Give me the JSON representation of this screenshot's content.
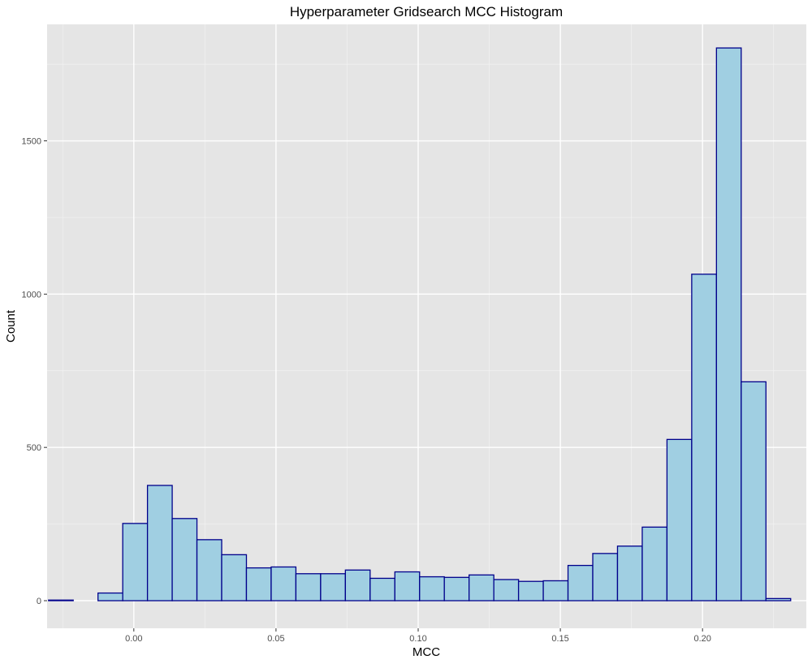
{
  "chart_data": {
    "type": "bar",
    "subtype": "histogram",
    "title": "Hyperparameter Gridsearch MCC Histogram",
    "xlabel": "MCC",
    "ylabel": "Count",
    "xlim": [
      -0.0305,
      0.2365
    ],
    "ylim": [
      -90,
      1880
    ],
    "x_ticks": [
      {
        "value": 0.0,
        "label": "0.00"
      },
      {
        "value": 0.05,
        "label": "0.05"
      },
      {
        "value": 0.1,
        "label": "0.10"
      },
      {
        "value": 0.15,
        "label": "0.15"
      },
      {
        "value": 0.2,
        "label": "0.20"
      }
    ],
    "y_ticks": [
      {
        "value": 0,
        "label": "0"
      },
      {
        "value": 500,
        "label": "500"
      },
      {
        "value": 1000,
        "label": "1000"
      },
      {
        "value": 1500,
        "label": "1500"
      }
    ],
    "x_minor_grid": [
      -0.025,
      0.025,
      0.075,
      0.125,
      0.175,
      0.225
    ],
    "y_minor_grid": [
      250,
      750,
      1250,
      1750
    ],
    "grid": true,
    "bin_width": 0.0087,
    "bins": [
      {
        "start": -0.03,
        "end": -0.0213,
        "count": 2
      },
      {
        "start": -0.0213,
        "end": -0.0126,
        "count": 0
      },
      {
        "start": -0.0126,
        "end": -0.0039,
        "count": 25
      },
      {
        "start": -0.0039,
        "end": 0.0048,
        "count": 252
      },
      {
        "start": 0.0048,
        "end": 0.0135,
        "count": 376
      },
      {
        "start": 0.0135,
        "end": 0.0222,
        "count": 268
      },
      {
        "start": 0.0222,
        "end": 0.0309,
        "count": 199
      },
      {
        "start": 0.0309,
        "end": 0.0396,
        "count": 150
      },
      {
        "start": 0.0396,
        "end": 0.0483,
        "count": 107
      },
      {
        "start": 0.0483,
        "end": 0.057,
        "count": 110
      },
      {
        "start": 0.057,
        "end": 0.0657,
        "count": 88
      },
      {
        "start": 0.0657,
        "end": 0.0744,
        "count": 88
      },
      {
        "start": 0.0744,
        "end": 0.0831,
        "count": 100
      },
      {
        "start": 0.0831,
        "end": 0.0918,
        "count": 73
      },
      {
        "start": 0.0918,
        "end": 0.1005,
        "count": 94
      },
      {
        "start": 0.1005,
        "end": 0.1092,
        "count": 78
      },
      {
        "start": 0.1092,
        "end": 0.1179,
        "count": 76
      },
      {
        "start": 0.1179,
        "end": 0.1266,
        "count": 84
      },
      {
        "start": 0.1266,
        "end": 0.1353,
        "count": 69
      },
      {
        "start": 0.1353,
        "end": 0.144,
        "count": 63
      },
      {
        "start": 0.144,
        "end": 0.1527,
        "count": 65
      },
      {
        "start": 0.1527,
        "end": 0.1614,
        "count": 115
      },
      {
        "start": 0.1614,
        "end": 0.1701,
        "count": 154
      },
      {
        "start": 0.1701,
        "end": 0.1788,
        "count": 178
      },
      {
        "start": 0.1788,
        "end": 0.1875,
        "count": 240
      },
      {
        "start": 0.1875,
        "end": 0.1962,
        "count": 526
      },
      {
        "start": 0.1962,
        "end": 0.2049,
        "count": 1065
      },
      {
        "start": 0.2049,
        "end": 0.2136,
        "count": 1803
      },
      {
        "start": 0.2136,
        "end": 0.2223,
        "count": 714
      },
      {
        "start": 0.2223,
        "end": 0.231,
        "count": 7
      }
    ],
    "colors": {
      "panel_background": "#e5e5e5",
      "grid_major": "#ffffff",
      "grid_minor": "#f2f2f2",
      "bar_fill": "#a0cfe2",
      "bar_outline": "#00008b",
      "tick_mark": "#333333",
      "tick_label": "#4d4d4d"
    }
  }
}
